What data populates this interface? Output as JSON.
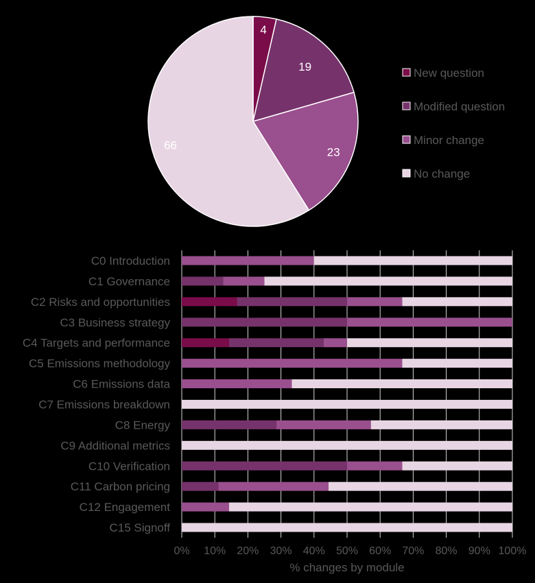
{
  "colors": {
    "background": "#000000",
    "new_question": "#7a0c4a",
    "modified_question": "#76326b",
    "minor_change": "#9a4f8e",
    "no_change": "#e8d5e3",
    "text": "#595959",
    "pie_label_light": "#ffffff",
    "gridline": "#d9d9d9"
  },
  "chart_data": [
    {
      "type": "pie",
      "categories": [
        "New question",
        "Modified question",
        "Minor change",
        "No change"
      ],
      "values": [
        4,
        19,
        23,
        66
      ],
      "data_labels": [
        "4",
        "19",
        "23",
        "66"
      ],
      "start_angle_deg": 0,
      "direction": "clockwise",
      "legend": {
        "placement": "right",
        "entries": [
          "New question",
          "Modified question",
          "Minor change",
          "No change"
        ]
      }
    },
    {
      "type": "bar",
      "orientation": "horizontal",
      "stacked": "percent",
      "categories": [
        "C0 Introduction",
        "C1 Governance",
        "C2 Risks and opportunities",
        "C3 Business strategy",
        "C4 Targets and performance",
        "C5 Emissions methodology",
        "C6 Emissions data",
        "C7 Emissions breakdown",
        "C8 Energy",
        "C9 Additional metrics",
        "C10 Verification",
        "C11 Carbon pricing",
        "C12 Engagement",
        "C15 Signoff"
      ],
      "series": [
        {
          "name": "New question",
          "values": [
            0,
            0,
            16.7,
            0,
            14.3,
            0,
            0,
            0,
            0,
            0,
            0,
            0,
            0,
            0
          ]
        },
        {
          "name": "Modified question",
          "values": [
            0,
            12.5,
            33.3,
            50,
            28.6,
            0,
            0,
            0,
            28.6,
            0,
            50,
            11.1,
            0,
            0
          ]
        },
        {
          "name": "Minor change",
          "values": [
            40,
            12.5,
            16.7,
            50,
            7.1,
            66.7,
            33.3,
            0,
            28.6,
            0,
            16.7,
            33.3,
            14.3,
            0
          ]
        },
        {
          "name": "No change",
          "values": [
            60,
            75,
            33.3,
            0,
            50,
            33.3,
            66.7,
            100,
            42.8,
            100,
            33.3,
            55.6,
            85.7,
            100
          ]
        }
      ],
      "xlim": [
        0,
        100
      ],
      "x_ticks": [
        "0%",
        "10%",
        "20%",
        "30%",
        "40%",
        "50%",
        "60%",
        "70%",
        "80%",
        "90%",
        "100%"
      ],
      "xlabel": "%  changes by module",
      "ylabel": "",
      "grid": "vertical"
    }
  ]
}
